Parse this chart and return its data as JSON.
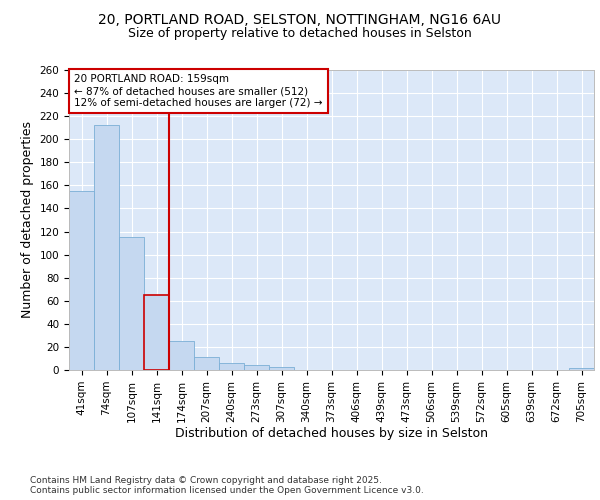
{
  "title_line1": "20, PORTLAND ROAD, SELSTON, NOTTINGHAM, NG16 6AU",
  "title_line2": "Size of property relative to detached houses in Selston",
  "xlabel": "Distribution of detached houses by size in Selston",
  "ylabel": "Number of detached properties",
  "categories": [
    "41sqm",
    "74sqm",
    "107sqm",
    "141sqm",
    "174sqm",
    "207sqm",
    "240sqm",
    "273sqm",
    "307sqm",
    "340sqm",
    "373sqm",
    "406sqm",
    "439sqm",
    "473sqm",
    "506sqm",
    "539sqm",
    "572sqm",
    "605sqm",
    "639sqm",
    "672sqm",
    "705sqm"
  ],
  "values": [
    155,
    212,
    115,
    65,
    25,
    11,
    6,
    4,
    3,
    0,
    0,
    0,
    0,
    0,
    0,
    0,
    0,
    0,
    0,
    0,
    2
  ],
  "bar_color": "#c5d8f0",
  "bar_edge_color": "#7aaed6",
  "highlight_bar_index": 3,
  "highlight_bar_color": "#c5d8f0",
  "highlight_bar_edge_color": "#cc0000",
  "vline_color": "#cc0000",
  "annotation_text": "20 PORTLAND ROAD: 159sqm\n← 87% of detached houses are smaller (512)\n12% of semi-detached houses are larger (72) →",
  "annotation_box_color": "#ffffff",
  "annotation_box_edge": "#cc0000",
  "ylim": [
    0,
    260
  ],
  "yticks": [
    0,
    20,
    40,
    60,
    80,
    100,
    120,
    140,
    160,
    180,
    200,
    220,
    240,
    260
  ],
  "background_color": "#dce8f8",
  "grid_color": "#ffffff",
  "fig_background": "#ffffff",
  "footer_text": "Contains HM Land Registry data © Crown copyright and database right 2025.\nContains public sector information licensed under the Open Government Licence v3.0.",
  "title_fontsize": 10,
  "subtitle_fontsize": 9,
  "axis_label_fontsize": 9,
  "tick_fontsize": 7.5,
  "annotation_fontsize": 7.5,
  "footer_fontsize": 6.5
}
